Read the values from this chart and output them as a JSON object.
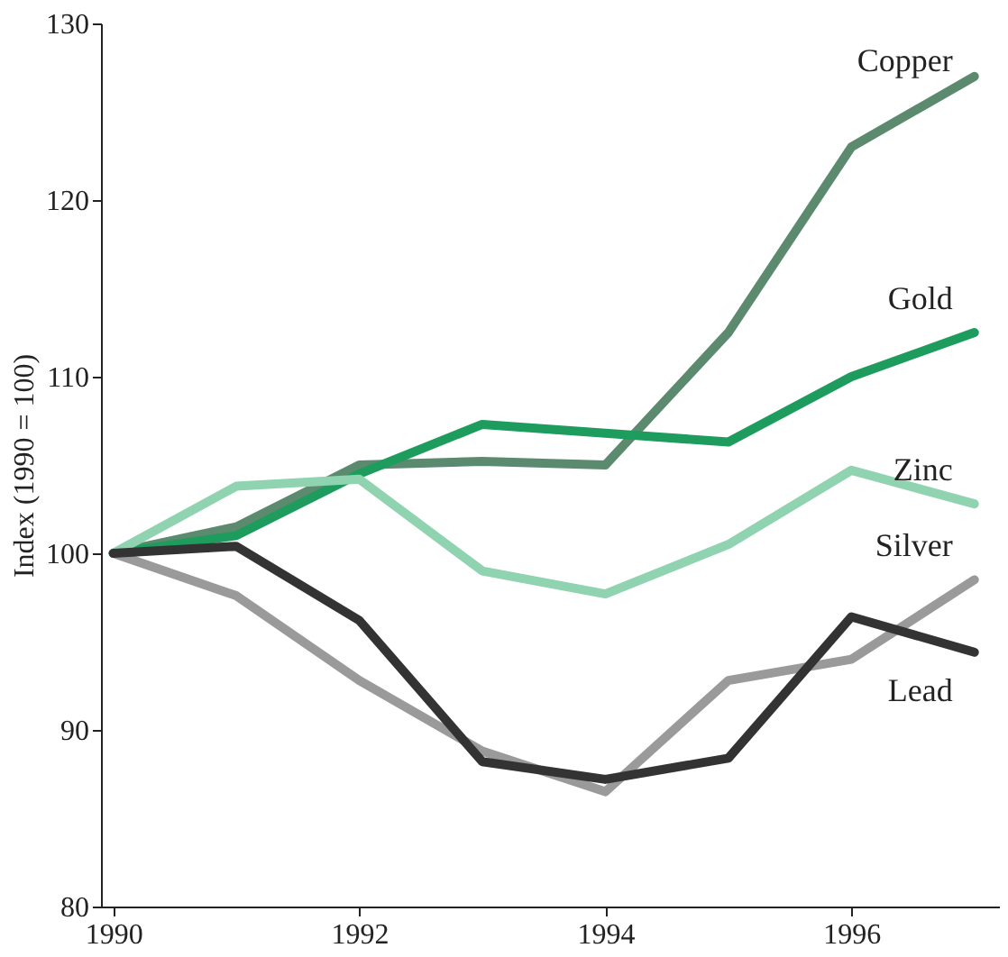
{
  "chart_data": {
    "type": "line",
    "ylabel": "Index (1990 = 100)",
    "x": [
      1990,
      1991,
      1992,
      1993,
      1994,
      1995,
      1996,
      1997
    ],
    "xlim": [
      1989.9,
      1997.2
    ],
    "xticks": [
      1990,
      1992,
      1994,
      1996
    ],
    "ylim": [
      80,
      130
    ],
    "yticks": [
      80,
      90,
      100,
      110,
      120,
      130
    ],
    "grid": false,
    "legend": false,
    "marker": "none",
    "line_style": "solid",
    "series": [
      {
        "name": "Copper",
        "color": "#5b8a6f",
        "values": [
          100,
          101.5,
          105,
          105.2,
          105,
          112.5,
          123,
          127
        ]
      },
      {
        "name": "Gold",
        "color": "#1e9c5e",
        "values": [
          100,
          101,
          104.5,
          107.3,
          106.8,
          106.3,
          110,
          112.5
        ]
      },
      {
        "name": "Zinc",
        "color": "#90d3b0",
        "values": [
          100,
          103.8,
          104.2,
          99,
          97.7,
          100.5,
          104.7,
          102.8
        ]
      },
      {
        "name": "Silver",
        "color": "#9a9a9a",
        "values": [
          100,
          97.6,
          92.8,
          88.8,
          86.5,
          92.8,
          94,
          98.5
        ]
      },
      {
        "name": "Lead",
        "color": "#333333",
        "values": [
          100,
          100.4,
          96.2,
          88.2,
          87.2,
          88.4,
          96.4,
          94.4
        ]
      }
    ]
  }
}
